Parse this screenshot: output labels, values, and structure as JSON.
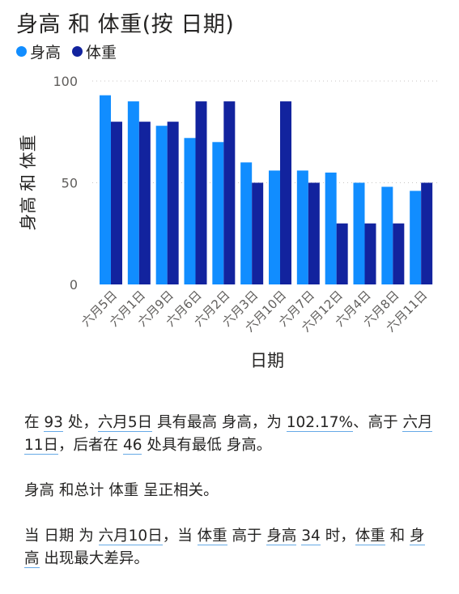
{
  "chart_data": {
    "type": "bar",
    "title": "身高 和 体重(按 日期)",
    "xlabel": "日期",
    "ylabel": "身高 和 体重",
    "categories": [
      "六月5日",
      "六月1日",
      "六月9日",
      "六月6日",
      "六月2日",
      "六月3日",
      "六月10日",
      "六月7日",
      "六月12日",
      "六月4日",
      "六月8日",
      "六月11日"
    ],
    "series": [
      {
        "name": "身高",
        "color": "#118DFF",
        "values": [
          93,
          90,
          78,
          72,
          70,
          60,
          56,
          56,
          55,
          50,
          48,
          46
        ]
      },
      {
        "name": "体重",
        "color": "#12239E",
        "values": [
          80,
          80,
          80,
          90,
          90,
          50,
          90,
          50,
          30,
          30,
          30,
          50
        ]
      }
    ],
    "ylim": [
      0,
      100
    ],
    "yticks": [
      0,
      50,
      100
    ],
    "grid": true,
    "legend_position": "top-left"
  },
  "narrative": {
    "p1": [
      {
        "t": "在 "
      },
      {
        "t": "93",
        "hl": true
      },
      {
        "t": " 处，"
      },
      {
        "t": "六月5日",
        "hl": true
      },
      {
        "t": " 具有最高 身高，为 "
      },
      {
        "t": "102.17%",
        "hl": true
      },
      {
        "t": "、高于 "
      },
      {
        "t": "六月11日",
        "hl": true
      },
      {
        "t": "，后者在 "
      },
      {
        "t": "46",
        "hl": true
      },
      {
        "t": " 处具有最低 身高。"
      }
    ],
    "p2": [
      {
        "t": "身高 和总计 体重 呈正相关。"
      }
    ],
    "p3": [
      {
        "t": "当 日期 为 "
      },
      {
        "t": "六月10日",
        "hl": true
      },
      {
        "t": "，当 "
      },
      {
        "t": "体重",
        "hl": true
      },
      {
        "t": " 高于 "
      },
      {
        "t": "身高",
        "hl": true
      },
      {
        "t": " "
      },
      {
        "t": "34",
        "hl": true
      },
      {
        "t": " 时，"
      },
      {
        "t": "体重",
        "hl": true
      },
      {
        "t": " 和 "
      },
      {
        "t": "身高",
        "hl": true
      },
      {
        "t": " 出现最大差异。"
      }
    ]
  }
}
